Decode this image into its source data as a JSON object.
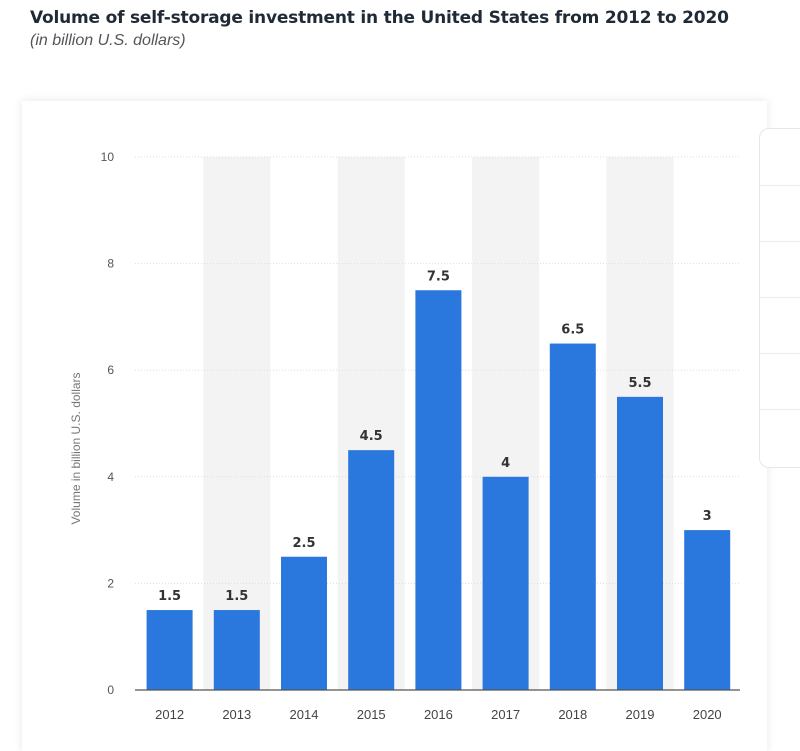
{
  "header": {
    "title": "Volume of self-storage investment in the United States from 2012 to 2020",
    "subtitle": "(in billion U.S. dollars)"
  },
  "colors": {
    "bar": "#2a77dd",
    "stripe": "#f3f3f3",
    "grid": "#dedede",
    "axis": "#555555"
  },
  "chart_data": {
    "type": "bar",
    "title": "Volume of self-storage investment in the United States from 2012 to 2020",
    "subtitle": "(in billion U.S. dollars)",
    "xlabel": "",
    "ylabel": "Volume in billion U.S. dollars",
    "categories": [
      "2012",
      "2013",
      "2014",
      "2015",
      "2016",
      "2017",
      "2018",
      "2019",
      "2020"
    ],
    "values": [
      1.5,
      1.5,
      2.5,
      4.5,
      7.5,
      4,
      6.5,
      5.5,
      3
    ],
    "value_labels": [
      "1.5",
      "1.5",
      "2.5",
      "4.5",
      "7.5",
      "4",
      "6.5",
      "5.5",
      "3"
    ],
    "ylim": [
      0,
      10
    ],
    "yticks": [
      0,
      2,
      4,
      6,
      8,
      10
    ],
    "grid": true,
    "legend": "none"
  }
}
